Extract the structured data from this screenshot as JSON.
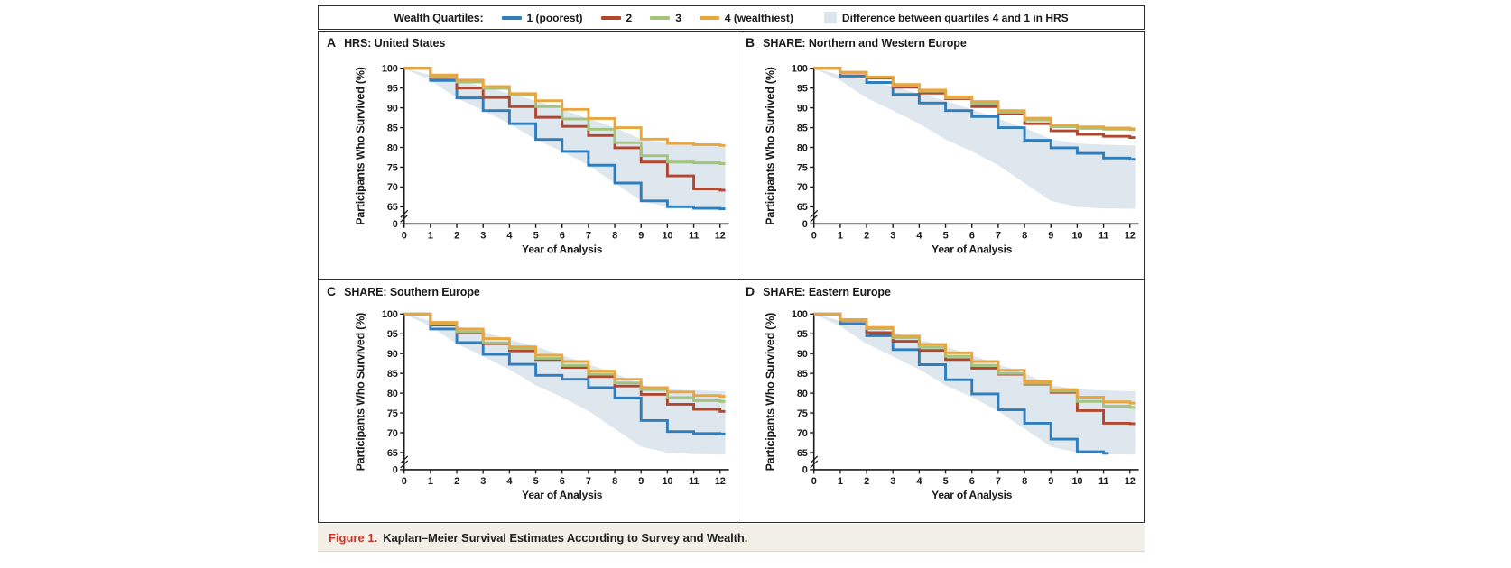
{
  "legend": {
    "title": "Wealth Quartiles:",
    "items": [
      {
        "key": "q1",
        "label": "1 (poorest)"
      },
      {
        "key": "q2",
        "label": "2"
      },
      {
        "key": "q3",
        "label": "3"
      },
      {
        "key": "q4",
        "label": "4 (wealthiest)"
      }
    ],
    "band_item": {
      "key": "band",
      "label": "Difference between quartiles 4 and 1 in HRS"
    }
  },
  "colors": {
    "q1": "#2E7EBD",
    "q2": "#B2472F",
    "q3": "#A3C47E",
    "q4": "#E9A63F",
    "band": "#DCE5ED",
    "axis": "#1a1a1a",
    "caption_tag_red": "#CE3426"
  },
  "band": {
    "note": "Difference between quartiles 4 and 1 in HRS (same shaded region on all panels)",
    "x": [
      0,
      1,
      2,
      3,
      4,
      5,
      6,
      7,
      8,
      9,
      10,
      11,
      12
    ],
    "upper": [
      100,
      98.3,
      97.0,
      95.4,
      93.6,
      91.8,
      89.6,
      87.3,
      85.0,
      82.1,
      81.0,
      80.7,
      80.5
    ],
    "lower": [
      100,
      96.9,
      92.5,
      89.3,
      86.0,
      82.0,
      79.0,
      75.5,
      71.0,
      66.5,
      65.0,
      64.6,
      64.5
    ],
    "end": 12.2
  },
  "chart_data": [
    {
      "id": "A",
      "type": "line",
      "panel_letter": "A",
      "title": "HRS: United States",
      "xlabel": "Year of Analysis",
      "ylabel": "Participants Who Survived (%)",
      "x": [
        0,
        1,
        2,
        3,
        4,
        5,
        6,
        7,
        8,
        9,
        10,
        11,
        12
      ],
      "y_ticks": [
        100,
        95,
        90,
        85,
        80,
        75,
        70,
        65,
        0
      ],
      "axis_break": true,
      "series": [
        {
          "key": "q1",
          "name": "1 (poorest)",
          "values": [
            100,
            96.9,
            92.5,
            89.3,
            86.0,
            82.0,
            79.0,
            75.5,
            71.0,
            66.5,
            65.0,
            64.6,
            64.5
          ]
        },
        {
          "key": "q2",
          "name": "2",
          "values": [
            100,
            97.6,
            95.0,
            92.6,
            90.3,
            87.6,
            85.3,
            83.0,
            79.9,
            76.3,
            72.8,
            69.5,
            69.2
          ]
        },
        {
          "key": "q3",
          "name": "3",
          "values": [
            100,
            97.9,
            96.5,
            94.9,
            93.3,
            90.3,
            87.2,
            84.6,
            81.2,
            77.9,
            76.3,
            76.1,
            75.9
          ]
        },
        {
          "key": "q4",
          "name": "4 (wealthiest)",
          "values": [
            100,
            98.3,
            97.0,
            95.4,
            93.6,
            91.8,
            89.6,
            87.3,
            85.0,
            82.1,
            81.0,
            80.7,
            80.5
          ]
        }
      ]
    },
    {
      "id": "B",
      "type": "line",
      "panel_letter": "B",
      "title": "SHARE: Northern and Western Europe",
      "xlabel": "Year of Analysis",
      "ylabel": "Participants Who Survived (%)",
      "x": [
        0,
        1,
        2,
        3,
        4,
        5,
        6,
        7,
        8,
        9,
        10,
        11,
        12
      ],
      "y_ticks": [
        100,
        95,
        90,
        85,
        80,
        75,
        70,
        65,
        0
      ],
      "axis_break": true,
      "series": [
        {
          "key": "q1",
          "name": "1 (poorest)",
          "values": [
            100,
            98.0,
            96.4,
            93.4,
            91.2,
            89.3,
            87.8,
            85.0,
            81.8,
            79.9,
            78.5,
            77.3,
            77.0
          ]
        },
        {
          "key": "q2",
          "name": "2",
          "values": [
            100,
            98.8,
            97.5,
            95.2,
            93.7,
            92.3,
            90.3,
            88.5,
            86.0,
            84.2,
            83.3,
            82.8,
            82.5
          ]
        },
        {
          "key": "q3",
          "name": "3",
          "values": [
            100,
            98.9,
            97.7,
            95.7,
            94.2,
            92.5,
            91.1,
            88.9,
            86.9,
            85.2,
            84.8,
            84.6,
            84.5
          ]
        },
        {
          "key": "q4",
          "name": "4 (wealthiest)",
          "values": [
            100,
            99.0,
            97.8,
            95.9,
            94.5,
            92.8,
            91.6,
            89.3,
            87.4,
            85.7,
            85.2,
            84.9,
            84.7
          ]
        }
      ]
    },
    {
      "id": "C",
      "type": "line",
      "panel_letter": "C",
      "title": "SHARE: Southern Europe",
      "xlabel": "Year of Analysis",
      "ylabel": "Participants Who Survived (%)",
      "x": [
        0,
        1,
        2,
        3,
        4,
        5,
        6,
        7,
        8,
        9,
        10,
        11,
        12
      ],
      "y_ticks": [
        100,
        95,
        90,
        85,
        80,
        75,
        70,
        65,
        0
      ],
      "axis_break": true,
      "series": [
        {
          "key": "q1",
          "name": "1 (poorest)",
          "values": [
            100,
            96.2,
            92.8,
            89.8,
            87.3,
            84.5,
            83.5,
            81.4,
            78.8,
            73.1,
            70.3,
            69.8,
            69.7
          ]
        },
        {
          "key": "q2",
          "name": "2",
          "values": [
            100,
            97.2,
            95.3,
            92.5,
            90.7,
            88.5,
            86.5,
            84.2,
            81.8,
            79.7,
            77.2,
            75.9,
            75.4
          ]
        },
        {
          "key": "q3",
          "name": "3",
          "values": [
            100,
            97.5,
            95.5,
            92.7,
            91.3,
            88.8,
            87.0,
            84.8,
            82.6,
            80.9,
            78.9,
            78.1,
            77.9
          ]
        },
        {
          "key": "q4",
          "name": "4 (wealthiest)",
          "values": [
            100,
            97.9,
            96.2,
            93.8,
            91.7,
            89.6,
            88.0,
            85.6,
            83.5,
            81.4,
            80.3,
            79.4,
            79.2
          ]
        }
      ]
    },
    {
      "id": "D",
      "type": "line",
      "panel_letter": "D",
      "title": "SHARE: Eastern Europe",
      "xlabel": "Year of Analysis",
      "ylabel": "Participants Who Survived (%)",
      "x": [
        0,
        1,
        2,
        3,
        4,
        5,
        6,
        7,
        8,
        9,
        10,
        11,
        12
      ],
      "y_ticks": [
        100,
        95,
        90,
        85,
        80,
        75,
        70,
        65,
        0
      ],
      "axis_break": true,
      "series": [
        {
          "key": "q1",
          "name": "1 (poorest)",
          "values": [
            100,
            97.6,
            94.5,
            91.0,
            87.2,
            83.4,
            79.8,
            75.8,
            72.4,
            68.4,
            65.2,
            64.8
          ],
          "end": 11.2
        },
        {
          "key": "q2",
          "name": "2",
          "values": [
            100,
            98.4,
            95.3,
            93.1,
            90.8,
            88.5,
            86.3,
            84.8,
            82.3,
            80.2,
            75.6,
            72.4,
            72.3
          ]
        },
        {
          "key": "q3",
          "name": "3",
          "values": [
            100,
            98.5,
            96.3,
            94.0,
            91.6,
            89.3,
            87.0,
            85.0,
            82.5,
            80.5,
            77.9,
            76.7,
            76.4
          ]
        },
        {
          "key": "q4",
          "name": "4 (wealthiest)",
          "values": [
            100,
            98.6,
            96.6,
            94.4,
            92.3,
            90.2,
            88.0,
            85.8,
            82.9,
            80.9,
            79.0,
            77.8,
            77.5
          ]
        }
      ]
    }
  ],
  "caption": {
    "tag": "Figure 1.",
    "text": "Kaplan–Meier Survival Estimates According to Survey and Wealth."
  }
}
